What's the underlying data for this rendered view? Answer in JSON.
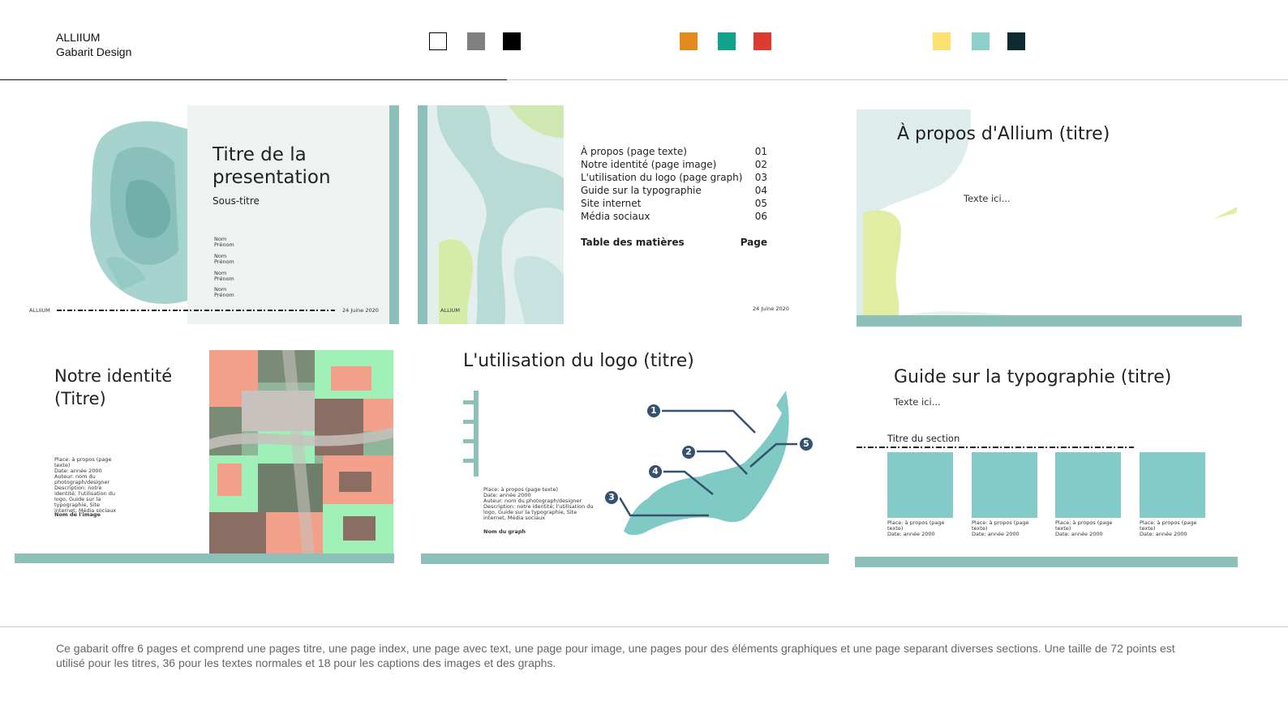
{
  "header": {
    "brand_line1": "ALLIIUM",
    "brand_line2": "Gabarit Design",
    "swatches": [
      {
        "name": "white",
        "color": "#ffffff"
      },
      {
        "name": "gray",
        "color": "#808080"
      },
      {
        "name": "black",
        "color": "#000000"
      },
      {
        "name": "orange",
        "color": "#e38a1e"
      },
      {
        "name": "teal",
        "color": "#0fa38e"
      },
      {
        "name": "red",
        "color": "#dd3b31"
      },
      {
        "name": "yellow",
        "color": "#fde072"
      },
      {
        "name": "light-teal",
        "color": "#8dcfcb"
      },
      {
        "name": "dark-navy",
        "color": "#0f2b32"
      }
    ]
  },
  "slide1": {
    "title_line1": "Titre de la",
    "title_line2": "presentation",
    "subtitle": "Sous-titre",
    "names": [
      "Nom\nPrénom",
      "Nom\nPrénom",
      "Nom\nPrénom",
      "Nom\nPrénom"
    ],
    "footer_brand": "ALLIIUM",
    "date": "24 Juine 2020"
  },
  "slide2": {
    "toc": [
      {
        "label": "À propos (page texte)",
        "num": "01"
      },
      {
        "label": "Notre identité (page image)",
        "num": "02"
      },
      {
        "label": "L'utilisation du logo (page graph)",
        "num": "03"
      },
      {
        "label": "Guide sur la typographie",
        "num": "04"
      },
      {
        "label": "Site internet",
        "num": "05"
      },
      {
        "label": "Média sociaux",
        "num": "06"
      }
    ],
    "toc_heading": "Table des matières",
    "toc_page_label": "Page",
    "footer_brand": "ALLIUM",
    "date": "24 Juine 2020"
  },
  "slide3": {
    "title": "À propos d'Allium (titre)",
    "body": "Texte ici..."
  },
  "slide4": {
    "title_line1": "Notre identité",
    "title_line2": "(Titre)",
    "meta": "Place: à propos (page texte)\nDate: année 2000\nAuteur: nom du photograph/designer\nDescription: notre identité; l'utilisation du logo, Guide sur la typographie, Site internet, Média sociaux",
    "image_name": "Nom de l'image"
  },
  "slide5": {
    "title": "L'utilisation du logo (titre)",
    "meta": "Place: à propos (page texte)\nDate: année 2000\nAuteur: nom du photograph/designer\nDescription: notre identité; l'utilisation du logo, Guide sur la typographie, Site internet, Média sociaux",
    "graph_name": "Nom du graph",
    "markers": [
      "1",
      "2",
      "3",
      "4",
      "5"
    ]
  },
  "slide6": {
    "title": "Guide sur la typographie (titre)",
    "body": "Texte ici...",
    "section_title": "Titre du section",
    "box_caption": "Place: à propos (page texte)\nDate: année 2000"
  },
  "footer": {
    "description": "Ce gabarit offre 6 pages et comprend une pages titre, une page index, une page avec text, une page pour image, une pages pour des éléments graphiques et une page separant diverses sections. Une taille de 72 points est utilisé pour les titres, 36 pour les textes normales et 18 pour les captions des images et des graphs."
  }
}
